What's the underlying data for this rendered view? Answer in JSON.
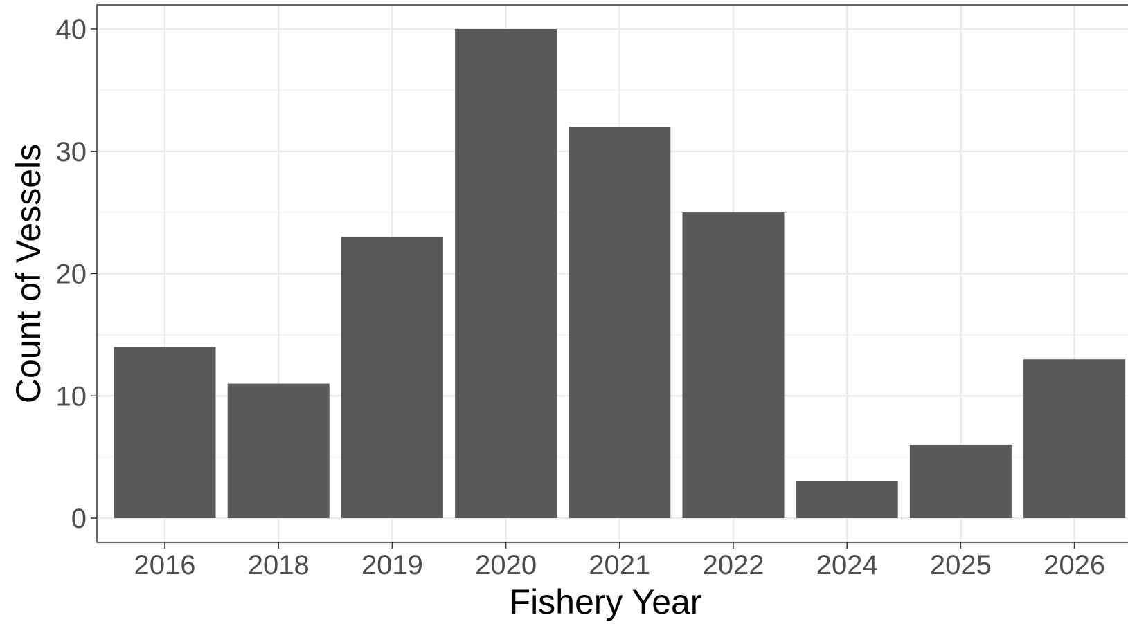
{
  "chart_data": {
    "type": "bar",
    "title": "",
    "xlabel": "Fishery Year",
    "ylabel": "Count of Vessels",
    "categories": [
      "2016",
      "2018",
      "2019",
      "2020",
      "2021",
      "2022",
      "2024",
      "2025",
      "2026"
    ],
    "values": [
      14,
      11,
      23,
      40,
      32,
      25,
      3,
      6,
      13
    ],
    "ylim": [
      0,
      42
    ],
    "yticks": [
      0,
      10,
      20,
      30,
      40
    ],
    "grid": true,
    "legend": "none",
    "colors": {
      "bar": "#595959",
      "grid_major": "#ebebeb",
      "grid_minor": "#f3f3f3",
      "panel_border": "#333333",
      "tick_label": "#4d4d4d",
      "axis_title": "#000000",
      "background": "#ffffff"
    }
  }
}
